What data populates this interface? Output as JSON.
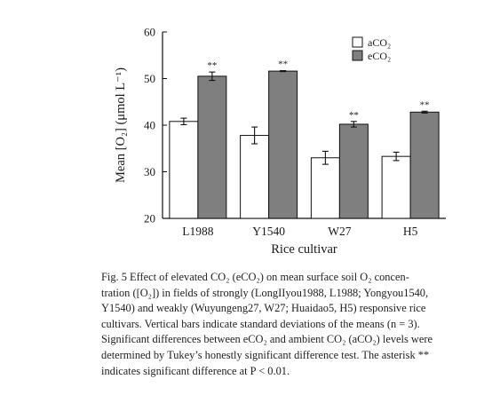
{
  "chart_data": {
    "type": "bar",
    "categories": [
      "L1988",
      "Y1540",
      "W27",
      "H5"
    ],
    "series": [
      {
        "name": "aCO₂",
        "color": "#ffffff",
        "values": [
          40.8,
          37.8,
          33.0,
          33.3
        ],
        "errors": [
          0.7,
          1.8,
          1.4,
          0.9
        ]
      },
      {
        "name": "eCO₂",
        "color": "#7f7f7f",
        "values": [
          50.5,
          51.6,
          40.2,
          42.8
        ],
        "errors": [
          0.9,
          0.1,
          0.6,
          0.2
        ]
      }
    ],
    "significance": [
      "**",
      "**",
      "**",
      "**"
    ],
    "xlabel": "Rice cultivar",
    "ylabel": "Mean [O₂] (μmol L⁻¹)",
    "ylim": [
      20,
      60
    ],
    "yticks": [
      "20",
      "30",
      "40",
      "50",
      "60"
    ],
    "grid": false,
    "legend_position": "top-right"
  },
  "caption": {
    "lines": [
      "Fig. 5   Effect of elevated CO₂ (eCO₂) on mean surface soil O₂ concen-",
      "tration ([O₂]) in fields of strongly (LongIIyou1988, L1988; Yongyou1540,",
      "Y1540) and weakly (Wuyungeng27, W27; Huaidao5, H5) responsive rice",
      "cultivars. Vertical bars indicate standard deviations of the means (n = 3).",
      "Significant differences between eCO₂ and ambient CO₂ (aCO₂) levels were",
      "determined by Tukey’s honestly significant difference test. The asterisk **",
      "indicates significant difference at P < 0.01."
    ]
  }
}
